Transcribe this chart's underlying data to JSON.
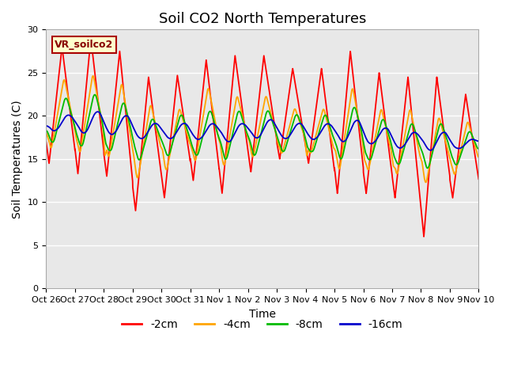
{
  "title": "Soil CO2 North Temperatures",
  "ylabel": "Soil Temperatures (C)",
  "xlabel": "Time",
  "annotation": "VR_soilco2",
  "ylim": [
    0,
    30
  ],
  "xlim_days": 15,
  "tick_labels": [
    "Oct 26",
    "Oct 27",
    "Oct 28",
    "Oct 29",
    "Oct 30",
    "Oct 31",
    "Nov 1",
    "Nov 2",
    "Nov 3",
    "Nov 4",
    "Nov 5",
    "Nov 6",
    "Nov 7",
    "Nov 8",
    "Nov 9",
    "Nov 10"
  ],
  "series": [
    {
      "label": "-2cm",
      "color": "#FF0000"
    },
    {
      "label": "-4cm",
      "color": "#FFA500"
    },
    {
      "label": "-8cm",
      "color": "#00BB00"
    },
    {
      "label": "-16cm",
      "color": "#0000CC"
    }
  ],
  "bg_color": "#E8E8E8",
  "grid_color": "#FFFFFF",
  "title_fontsize": 13,
  "label_fontsize": 10,
  "tick_fontsize": 8,
  "legend_fontsize": 10,
  "annotation_fontsize": 9,
  "annotation_bg": "#FFFFCC",
  "annotation_border": "#AA0000",
  "annotation_text_color": "#880000",
  "peaks_2cm": [
    28.0,
    29.0,
    27.5,
    24.5,
    24.7,
    26.5,
    27.0,
    27.0,
    25.5,
    25.5,
    27.5,
    25.0,
    24.5,
    24.5,
    22.5
  ],
  "troughs_2cm": [
    14.5,
    13.3,
    13.0,
    9.0,
    10.5,
    12.5,
    11.0,
    13.5,
    15.0,
    14.5,
    11.0,
    11.0,
    10.5,
    6.0,
    10.5
  ],
  "peaks_4cm": [
    24.5,
    25.0,
    24.0,
    21.5,
    21.0,
    23.5,
    22.5,
    22.5,
    21.0,
    21.0,
    23.5,
    21.0,
    21.0,
    20.0,
    19.5
  ],
  "troughs_4cm": [
    16.0,
    15.5,
    15.0,
    12.5,
    13.5,
    14.5,
    14.0,
    15.0,
    15.5,
    15.5,
    13.5,
    13.5,
    13.0,
    12.0,
    13.0
  ],
  "peaks_8cm": [
    22.5,
    23.0,
    22.0,
    20.0,
    20.5,
    21.0,
    21.0,
    21.0,
    20.5,
    20.5,
    21.5,
    20.0,
    19.5,
    19.5,
    18.5
  ],
  "troughs_8cm": [
    16.5,
    16.0,
    15.5,
    14.5,
    15.0,
    15.0,
    14.5,
    15.0,
    15.5,
    15.5,
    14.5,
    14.5,
    14.0,
    13.5,
    14.0
  ],
  "peaks_16cm": [
    20.5,
    21.0,
    20.5,
    19.5,
    19.5,
    19.5,
    19.5,
    20.0,
    19.5,
    19.5,
    20.0,
    19.0,
    18.5,
    18.5,
    17.5
  ],
  "troughs_16cm": [
    18.0,
    17.5,
    17.5,
    17.0,
    17.0,
    17.0,
    16.5,
    17.0,
    17.0,
    17.0,
    16.5,
    16.5,
    16.0,
    15.5,
    16.0
  ],
  "peak_phase": 0.55,
  "trough_phase": 0.1,
  "phase_delay_4cm": 0.07,
  "phase_delay_8cm": 0.13,
  "phase_delay_16cm": 0.22
}
